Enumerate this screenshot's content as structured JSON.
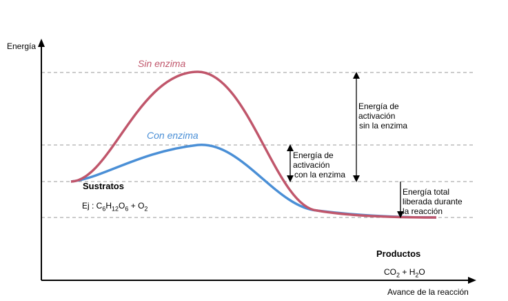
{
  "axes": {
    "y_label": "Energía",
    "x_label": "Avance de la reacción"
  },
  "curves": [
    {
      "label": "Sin enzima",
      "color": "#c0566b"
    },
    {
      "label": "Con enzima",
      "color": "#4a8fd6"
    }
  ],
  "annotations": {
    "activation_without": [
      "Energía de",
      "activación",
      "sin la enzima"
    ],
    "activation_with": [
      "Energía de",
      "activación",
      "con la enzima"
    ],
    "total_released": [
      "Energía total",
      "liberada durante",
      "la reacción"
    ]
  },
  "substrates": {
    "title": "Sustratos",
    "example_prefix": "Ej : ",
    "formula": [
      {
        "t": "C"
      },
      {
        "s": "6"
      },
      {
        "t": "H"
      },
      {
        "s": "12"
      },
      {
        "t": "O"
      },
      {
        "s": "6"
      },
      {
        "t": " + O"
      },
      {
        "s": "2"
      }
    ]
  },
  "products": {
    "title": "Productos",
    "formula": [
      {
        "t": "CO"
      },
      {
        "s": "2"
      },
      {
        "t": " + H"
      },
      {
        "s": "2"
      },
      {
        "t": "O"
      }
    ]
  }
}
